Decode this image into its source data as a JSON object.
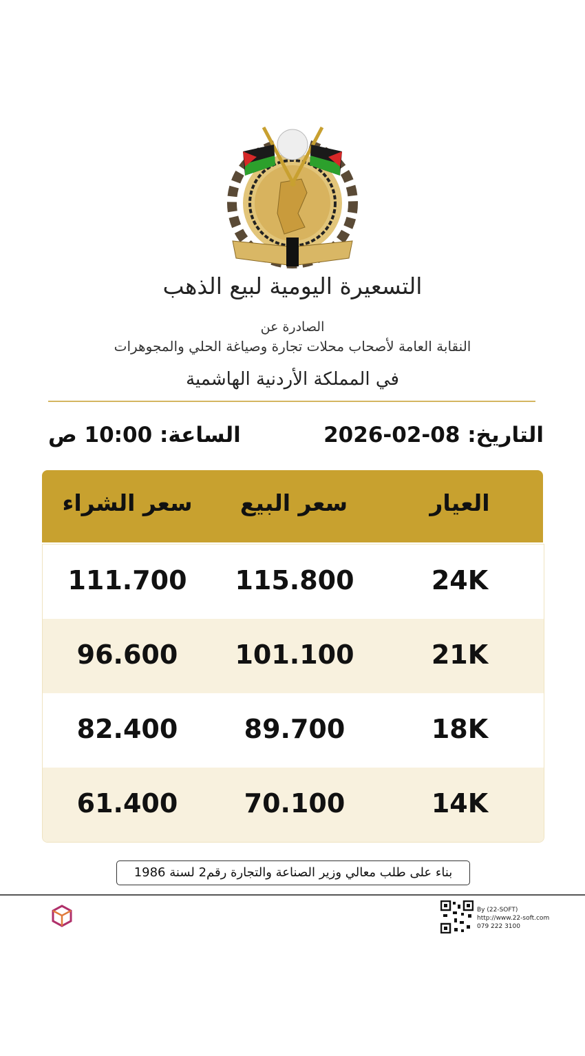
{
  "header": {
    "title": "التسعيرة اليومية لبيع الذهب",
    "issued_by": "الصادرة عن",
    "union": "النقابة العامة لأصحاب محلات تجارة وصياغة الحلي والمجوهرات",
    "kingdom": "في المملكة الأردنية الهاشمية",
    "logo_icon": "jordan-jewelers-union-emblem"
  },
  "datetime": {
    "date": "التاريخ: 08-02-2026",
    "time": "الساعة: 10:00 ص"
  },
  "table": {
    "headers": {
      "karat": "العيار",
      "sell": "سعر البيع",
      "buy": "سعر الشراء"
    },
    "rows": [
      {
        "karat": "24K",
        "sell": "115.800",
        "buy": "111.700"
      },
      {
        "karat": "21K",
        "sell": "101.100",
        "buy": "96.600"
      },
      {
        "karat": "18K",
        "sell": "89.700",
        "buy": "82.400"
      },
      {
        "karat": "14K",
        "sell": "70.100",
        "buy": "61.400"
      }
    ],
    "header_color": "#c8a12f",
    "alt_row_color": "#f8f1de"
  },
  "note": "بناء على طلب معالي وزير الصناعة والتجارة رقم2 لسنة 1986",
  "footer": {
    "by": "By (22-SOFT)",
    "url": "http://www.22-soft.com",
    "phone": "079 222 3100",
    "qr_icon": "qr-code",
    "brand_icon": "22-soft-logo"
  }
}
